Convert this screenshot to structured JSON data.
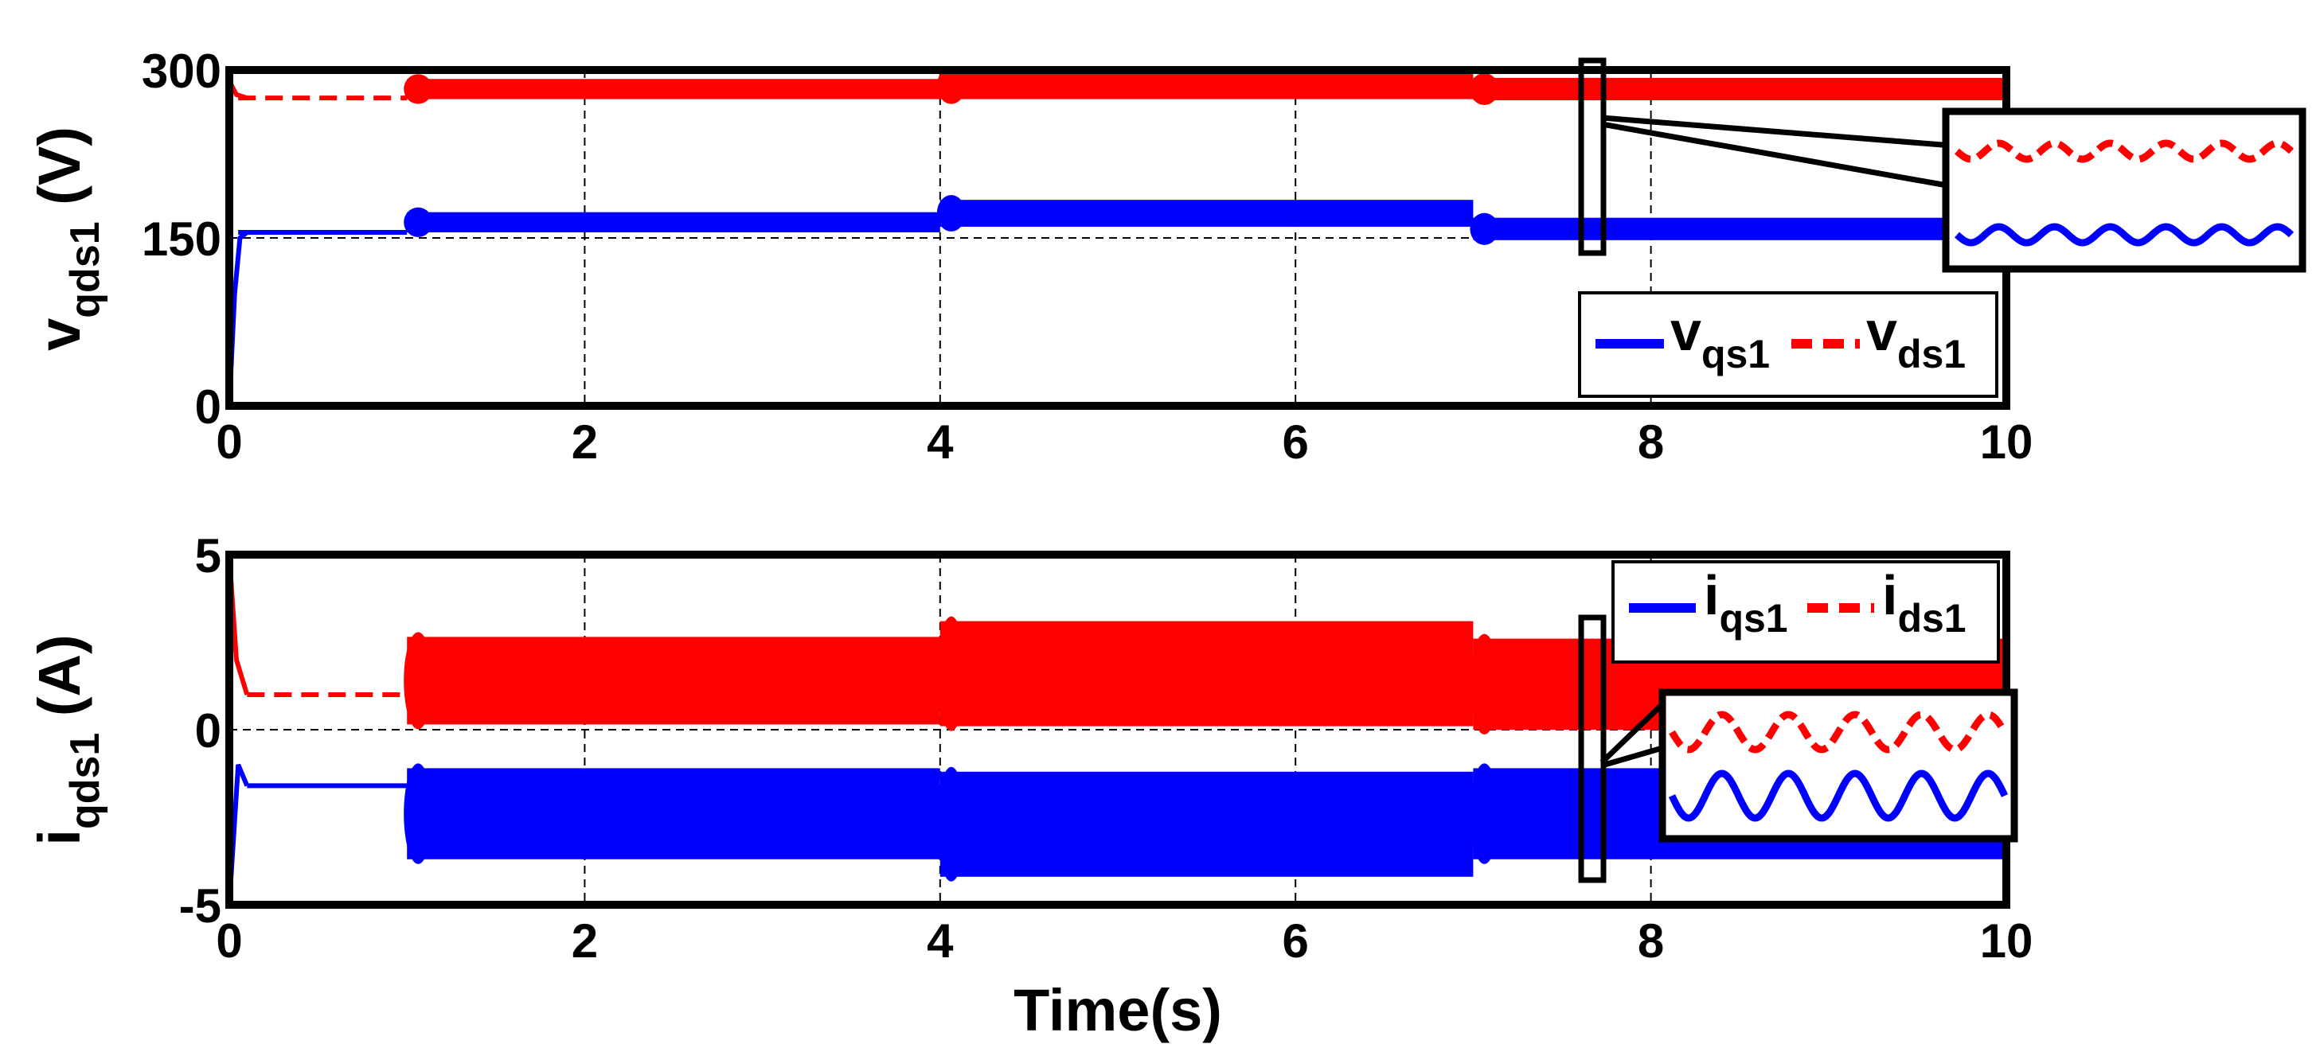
{
  "chart_data": [
    {
      "type": "line",
      "xlabel": "",
      "ylabel": {
        "main": "v",
        "sub": "qds1",
        "unit": " (V)"
      },
      "xlim": [
        0,
        10
      ],
      "ylim": [
        0,
        300
      ],
      "xticks": [
        0,
        2,
        4,
        6,
        8,
        10
      ],
      "yticks": [
        0,
        150,
        300
      ],
      "grid": true,
      "legend_position": "bottom-right",
      "series": [
        {
          "name": "v",
          "sub": "qs1",
          "color": "#0000ff",
          "style": "solid",
          "segments": [
            {
              "x": [
                0.05,
                1.0
              ],
              "center": 155,
              "amp": 0
            },
            {
              "x": [
                1.0,
                4.0
              ],
              "center": 164,
              "amp": 9
            },
            {
              "x": [
                4.0,
                7.0
              ],
              "center": 172,
              "amp": 12
            },
            {
              "x": [
                7.0,
                10.0
              ],
              "center": 158,
              "amp": 10
            }
          ],
          "startup": [
            [
              0.0,
              0
            ],
            [
              0.03,
              100
            ],
            [
              0.06,
              150
            ],
            [
              0.1,
              155
            ]
          ]
        },
        {
          "name": "v",
          "sub": "ds1",
          "color": "#ff0000",
          "style": "dashed",
          "segments": [
            {
              "x": [
                0.05,
                1.0
              ],
              "center": 275,
              "amp": 0
            },
            {
              "x": [
                1.0,
                4.0
              ],
              "center": 283,
              "amp": 9
            },
            {
              "x": [
                4.0,
                7.0
              ],
              "center": 286,
              "amp": 12
            },
            {
              "x": [
                7.0,
                10.0
              ],
              "center": 283,
              "amp": 10
            }
          ],
          "startup": [
            [
              0.0,
              290
            ],
            [
              0.04,
              278
            ],
            [
              0.1,
              275
            ]
          ]
        }
      ]
    },
    {
      "type": "line",
      "xlabel": "Time(s)",
      "ylabel": {
        "main": "i",
        "sub": "qds1",
        "unit": " (A)"
      },
      "xlim": [
        0,
        10
      ],
      "ylim": [
        -5,
        5
      ],
      "xticks": [
        0,
        2,
        4,
        6,
        8,
        10
      ],
      "yticks": [
        -5,
        0,
        5
      ],
      "grid": true,
      "legend_position": "top-right",
      "series": [
        {
          "name": "i",
          "sub": "qs1",
          "color": "#0000ff",
          "style": "solid",
          "segments": [
            {
              "x": [
                0.1,
                1.0
              ],
              "center": -1.6,
              "amp": 0
            },
            {
              "x": [
                1.0,
                4.0
              ],
              "center": -2.4,
              "amp": 1.3
            },
            {
              "x": [
                4.0,
                7.0
              ],
              "center": -2.7,
              "amp": 1.5
            },
            {
              "x": [
                7.0,
                10.0
              ],
              "center": -2.4,
              "amp": 1.3
            }
          ],
          "startup": [
            [
              0.0,
              -5
            ],
            [
              0.05,
              -1.0
            ],
            [
              0.1,
              -1.6
            ]
          ]
        },
        {
          "name": "i",
          "sub": "ds1",
          "color": "#ff0000",
          "style": "dashed",
          "segments": [
            {
              "x": [
                0.1,
                1.0
              ],
              "center": 1.0,
              "amp": 0
            },
            {
              "x": [
                1.0,
                4.0
              ],
              "center": 1.4,
              "amp": 1.25
            },
            {
              "x": [
                4.0,
                7.0
              ],
              "center": 1.6,
              "amp": 1.5
            },
            {
              "x": [
                7.0,
                10.0
              ],
              "center": 1.3,
              "amp": 1.3
            }
          ],
          "startup": [
            [
              0.0,
              5
            ],
            [
              0.04,
              2.0
            ],
            [
              0.1,
              1.0
            ]
          ]
        }
      ]
    }
  ]
}
